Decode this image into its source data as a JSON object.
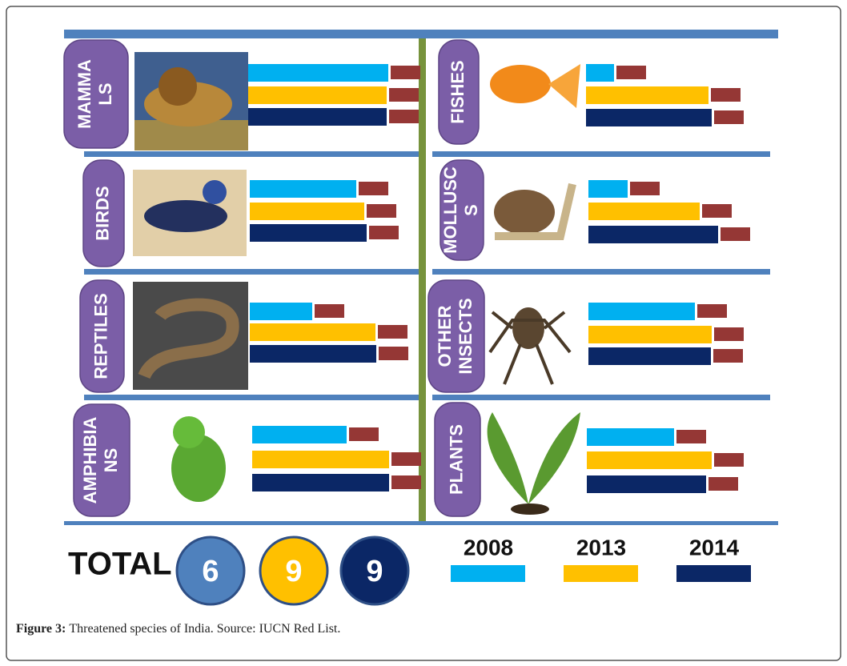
{
  "chart_data": {
    "type": "bar",
    "series": [
      {
        "name": "2008",
        "color": "#00b0f0"
      },
      {
        "name": "2013",
        "color": "#ffc000"
      },
      {
        "name": "2014",
        "color": "#0b2766"
      }
    ],
    "panels": [
      {
        "label_lines": [
          "MAMMA",
          "LS"
        ],
        "values": [
          175,
          173,
          173
        ]
      },
      {
        "label_lines": [
          "BIRDS"
        ],
        "values": [
          133,
          143,
          146
        ]
      },
      {
        "label_lines": [
          "REPTILES"
        ],
        "values": [
          78,
          157,
          158
        ]
      },
      {
        "label_lines": [
          "AMPHIBIA",
          "NS"
        ],
        "values": [
          118,
          171,
          171
        ]
      },
      {
        "label_lines": [
          "FISHES"
        ],
        "values": [
          35,
          153,
          157
        ]
      },
      {
        "label_lines": [
          "MOLLUSC",
          "S"
        ],
        "values": [
          49,
          139,
          162
        ]
      },
      {
        "label_lines": [
          "OTHER",
          "INSECTS"
        ],
        "values": [
          133,
          154,
          153
        ]
      },
      {
        "label_lines": [
          "PLANTS"
        ],
        "values": [
          109,
          156,
          149
        ]
      }
    ],
    "totals": {
      "label": "TOTAL",
      "values": [
        6,
        9,
        9
      ],
      "colors": [
        "#4f81bd",
        "#ffc000",
        "#0b2766"
      ]
    },
    "caption": {
      "label": "Figure 3:",
      "text": "Threatened species of India. Source: IUCN Red List."
    }
  }
}
